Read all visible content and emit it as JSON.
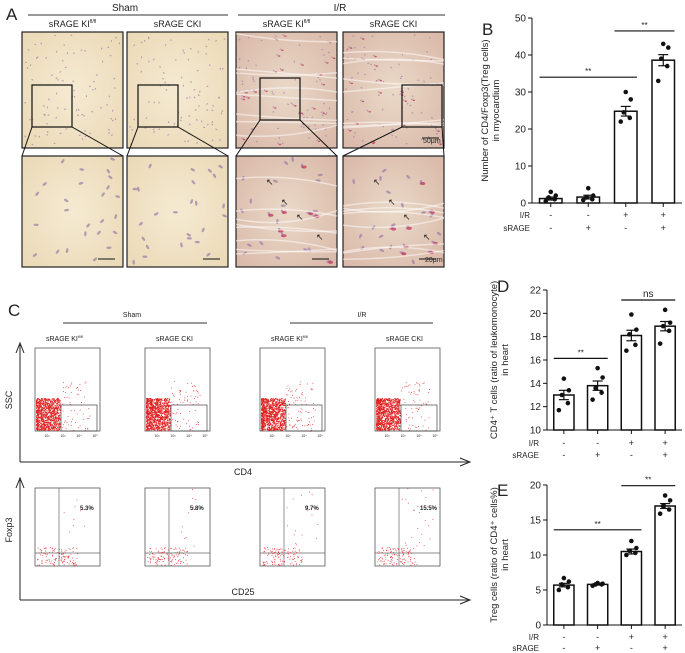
{
  "panels": {
    "A": {
      "letter": "A",
      "groups": [
        "Sham",
        "I/R"
      ],
      "columns": [
        "sRAGE KI",
        "sRAGE CKI",
        "sRAGE KI",
        "sRAGE CKI"
      ],
      "superscript": "fl/fl",
      "scale_top": "50μm",
      "scale_bottom": "20μm"
    },
    "C": {
      "letter": "C",
      "groups": [
        "Sham",
        "I/R"
      ],
      "columns": [
        "sRAGE KI",
        "sRAGE CKI",
        "sRAGE KI",
        "sRAGE CKI"
      ],
      "superscript": "fl/fl",
      "row1_ylabel": "SSC",
      "row1_xlabel": "CD4",
      "row2_ylabel": "Foxp3",
      "row2_xlabel": "CD25",
      "percentages": [
        "5.3%",
        "5.8%",
        "9.7%",
        "15.5%"
      ],
      "ticks": [
        "10²",
        "10³",
        "10⁴",
        "10⁵"
      ]
    }
  },
  "colors": {
    "dots": "#e02020",
    "stain": "#c8305a",
    "tissue": "#f3e8cf"
  },
  "chart_data": [
    {
      "letter": "B",
      "type": "bar",
      "ylabel": "Number of  CD4/Foxp3(Treg cells)",
      "ylabel2": "in myocardium",
      "ylim": [
        0,
        50
      ],
      "yticks": [
        0,
        10,
        20,
        30,
        40,
        50
      ],
      "row_labels": [
        "I/R",
        "sRAGE"
      ],
      "conditions": [
        [
          "-",
          "-"
        ],
        [
          "-",
          "+"
        ],
        [
          "+",
          "-"
        ],
        [
          "+",
          "+"
        ]
      ],
      "values": [
        1.2,
        1.6,
        24.8,
        38.6
      ],
      "sem": [
        0.4,
        0.5,
        1.3,
        1.5
      ],
      "points": [
        [
          0.5,
          1,
          1.5,
          2,
          3
        ],
        [
          0.8,
          1,
          1.5,
          2,
          4
        ],
        [
          22,
          23,
          24.5,
          28,
          30
        ],
        [
          33,
          37,
          39,
          42,
          43
        ]
      ],
      "significance": [
        {
          "from": 0,
          "to": 2,
          "label": "**"
        },
        {
          "from": 2,
          "to": 3,
          "label": "**"
        }
      ]
    },
    {
      "letter": "D",
      "type": "bar",
      "ylabel": "CD4⁺ T cells (ratio of  leukomonocyte)",
      "ylabel2": "in heart",
      "ylim": [
        10,
        22
      ],
      "yticks": [
        10,
        12,
        14,
        16,
        18,
        20,
        22
      ],
      "row_labels": [
        "I/R",
        "sRAGE"
      ],
      "conditions": [
        [
          "-",
          "-"
        ],
        [
          "-",
          "+"
        ],
        [
          "+",
          "-"
        ],
        [
          "+",
          "+"
        ]
      ],
      "values": [
        13.0,
        13.8,
        18.1,
        18.9
      ],
      "sem": [
        0.4,
        0.4,
        0.45,
        0.4
      ],
      "points": [
        [
          11.7,
          12.3,
          13.0,
          13.4,
          14.4
        ],
        [
          12.6,
          13.2,
          13.6,
          14.5,
          15.3
        ],
        [
          16.8,
          17.3,
          18.2,
          18.6,
          19.9
        ],
        [
          17.4,
          18.5,
          18.9,
          19.2,
          20.3
        ]
      ],
      "significance": [
        {
          "from": 0,
          "to": 1,
          "label": "**"
        },
        {
          "from": 2,
          "to": 3,
          "label": "ns"
        }
      ]
    },
    {
      "letter": "E",
      "type": "bar",
      "ylabel": "Treg cells (ratio of  CD4⁺ cells%)",
      "ylabel2": "in heart",
      "ylim": [
        0,
        20
      ],
      "yticks": [
        0,
        5,
        10,
        15,
        20
      ],
      "row_labels": [
        "I/R",
        "sRAGE"
      ],
      "conditions": [
        [
          "-",
          "-"
        ],
        [
          "-",
          "+"
        ],
        [
          "+",
          "-"
        ],
        [
          "+",
          "+"
        ]
      ],
      "values": [
        5.7,
        5.8,
        10.5,
        17.0
      ],
      "sem": [
        0.25,
        0.1,
        0.35,
        0.35
      ],
      "points": [
        [
          5.0,
          5.4,
          5.8,
          6.2,
          6.7
        ],
        [
          5.6,
          5.8,
          5.8,
          5.9,
          6.0
        ],
        [
          10.0,
          10.3,
          10.6,
          11.0,
          12.0
        ],
        [
          15.9,
          16.5,
          17.0,
          17.8,
          18.5
        ]
      ],
      "significance": [
        {
          "from": 0,
          "to": 2,
          "label": "**"
        },
        {
          "from": 2,
          "to": 3,
          "label": "**"
        }
      ]
    }
  ]
}
